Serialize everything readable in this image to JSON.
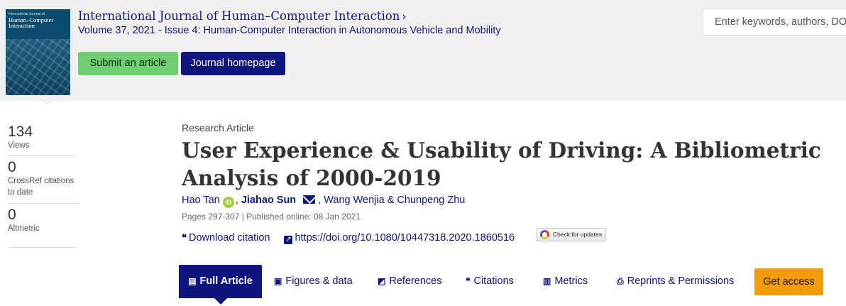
{
  "cover": {
    "small_text": "International Journal of",
    "big_text_line1": "Human–Computer",
    "big_text_line2": "Interaction"
  },
  "journal": {
    "title": "International Journal of Human–Computer Interaction",
    "chevron": "›",
    "volume": "Volume 37, 2021",
    "issue": " - Issue 4: Human-Computer Interaction in Autonomous Vehicle and Mobility"
  },
  "buttons": {
    "submit": "Submit an article",
    "homepage": "Journal homepage",
    "get_access": "Get access"
  },
  "search": {
    "placeholder": "Enter keywords, authors, DOI"
  },
  "metrics": [
    {
      "value": "134",
      "label": "Views"
    },
    {
      "value": "0",
      "label_line1": "CrossRef citations",
      "label_line2": "to date"
    },
    {
      "value": "0",
      "label": "Altmetric"
    }
  ],
  "article": {
    "type": "Research Article",
    "title_line1": "User Experience & Usability of Driving: A Bibliometric",
    "title_line2": "Analysis of 2000-2019",
    "authors": {
      "a1": "Hao Tan",
      "orcid_text": "iD",
      "sep1": ", ",
      "a2": "Jiahao Sun",
      "sep2": ", ",
      "a3": "Wang Wenjia",
      "sep3": " & ",
      "a4": "Chunpeng Zhu"
    },
    "pages": "Pages 297-307",
    "published": "Published online: 08 Jan 2021",
    "download_citation": "Download citation",
    "doi": "https://doi.org/10.1080/10447318.2020.1860516",
    "check_updates": "Check for updates"
  },
  "tabs": [
    {
      "label": "Full Article",
      "icon": "document-icon"
    },
    {
      "label": "Figures & data",
      "icon": "image-icon"
    },
    {
      "label": "References",
      "icon": "book-icon"
    },
    {
      "label": "Citations",
      "icon": "quote-icon"
    },
    {
      "label": "Metrics",
      "icon": "bar-chart-icon"
    },
    {
      "label": "Reprints & Permissions",
      "icon": "printer-icon"
    }
  ],
  "colors": {
    "brand_navy": "#10147e",
    "submit_green": "#6fce74",
    "access_orange": "#f39c0a",
    "header_bg": "#f0f0f0"
  }
}
